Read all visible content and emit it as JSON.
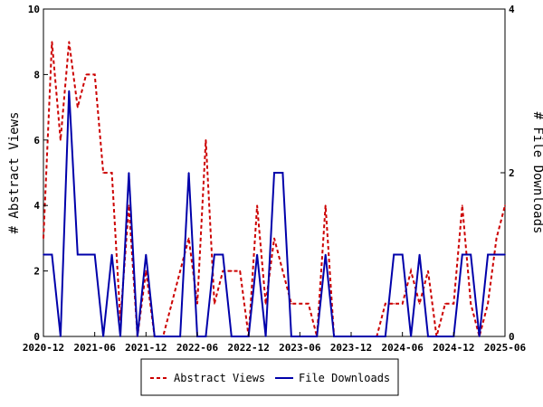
{
  "chart_data": {
    "type": "line",
    "y_left_label": "# Abstract Views",
    "y_right_label": "# File Downloads",
    "y_left_lim": [
      0,
      10
    ],
    "y_right_lim": [
      0,
      4
    ],
    "y_left_ticks": [
      "0",
      "2",
      "4",
      "6",
      "8",
      "10"
    ],
    "y_right_ticks": [
      "0",
      "2",
      "4"
    ],
    "x_tick_labels": [
      "2020-12",
      "2021-06",
      "2021-12",
      "2022-06",
      "2022-12",
      "2023-06",
      "2023-12",
      "2024-06",
      "2024-12",
      "2025-06"
    ],
    "x_start": "2020-12",
    "legend": {
      "position": "bottom"
    },
    "series": [
      {
        "name": "Abstract Views",
        "axis": "left",
        "color": "#cc0000",
        "style": "dashed",
        "values": [
          3,
          9,
          6,
          9,
          7,
          8,
          8,
          5,
          5,
          0.5,
          4,
          0,
          2,
          0,
          0,
          1,
          2,
          3,
          1,
          6,
          1,
          2,
          2,
          2,
          0,
          4,
          1,
          3,
          2,
          1,
          1,
          1,
          0,
          4,
          0,
          0,
          0,
          0,
          0,
          0,
          1,
          1,
          1,
          2,
          1,
          2,
          0,
          1,
          1,
          4,
          1,
          0,
          1,
          3,
          4
        ]
      },
      {
        "name": "File Downloads",
        "axis": "right",
        "color": "#0000aa",
        "style": "solid",
        "values": [
          1,
          1,
          0,
          3,
          1,
          1,
          1,
          0,
          1,
          0,
          2,
          0,
          1,
          0,
          0,
          0,
          0,
          2,
          0,
          0,
          1,
          1,
          0,
          0,
          0,
          1,
          0,
          2,
          2,
          0,
          0,
          0,
          0,
          1,
          0,
          0,
          0,
          0,
          0,
          0,
          0,
          1,
          1,
          0,
          1,
          0,
          0,
          0,
          0,
          1,
          1,
          0,
          1,
          1,
          1
        ]
      }
    ]
  }
}
